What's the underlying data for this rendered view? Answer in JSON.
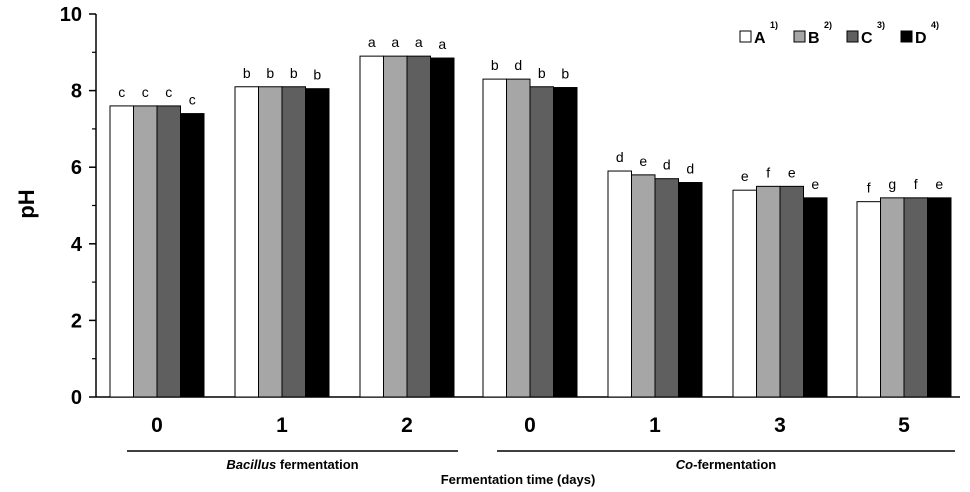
{
  "chart_data": {
    "type": "bar",
    "title": "",
    "ylabel": "pH",
    "xlabel": "Fermentation time (days)",
    "ylim": [
      0,
      10
    ],
    "yticks": [
      "0",
      "2",
      "4",
      "6",
      "8",
      "10"
    ],
    "categories": [
      "0",
      "1",
      "2",
      "0",
      "1",
      "3",
      "5"
    ],
    "groups": [
      {
        "label_italic": "Bacillus",
        "label_rest": " fermentation",
        "categories": [
          0,
          1,
          2
        ]
      },
      {
        "label_italic": "Co",
        "label_rest": "-fermentation",
        "categories": [
          3,
          4,
          5,
          6
        ]
      }
    ],
    "series": [
      {
        "name": "A",
        "sup": "1)",
        "color": "#ffffff",
        "values": [
          7.6,
          8.1,
          8.9,
          8.3,
          5.9,
          5.4,
          5.1
        ],
        "letters": [
          "c",
          "b",
          "a",
          "b",
          "d",
          "e",
          "f"
        ]
      },
      {
        "name": "B",
        "sup": "2)",
        "color": "#a6a6a6",
        "values": [
          7.6,
          8.1,
          8.9,
          8.3,
          5.8,
          5.5,
          5.2
        ],
        "letters": [
          "c",
          "b",
          "a",
          "d",
          "e",
          "f",
          "g"
        ]
      },
      {
        "name": "C",
        "sup": "3)",
        "color": "#5f5f5f",
        "values": [
          7.6,
          8.1,
          8.9,
          8.1,
          5.7,
          5.5,
          5.2
        ],
        "letters": [
          "c",
          "b",
          "a",
          "b",
          "d",
          "e",
          "f"
        ]
      },
      {
        "name": "D",
        "sup": "4)",
        "color": "#000000",
        "values": [
          7.4,
          8.05,
          8.85,
          8.08,
          5.6,
          5.2,
          5.2
        ],
        "letters": [
          "c",
          "b",
          "a",
          "b",
          "d",
          "e",
          "e"
        ]
      }
    ],
    "legend": "top-right"
  }
}
